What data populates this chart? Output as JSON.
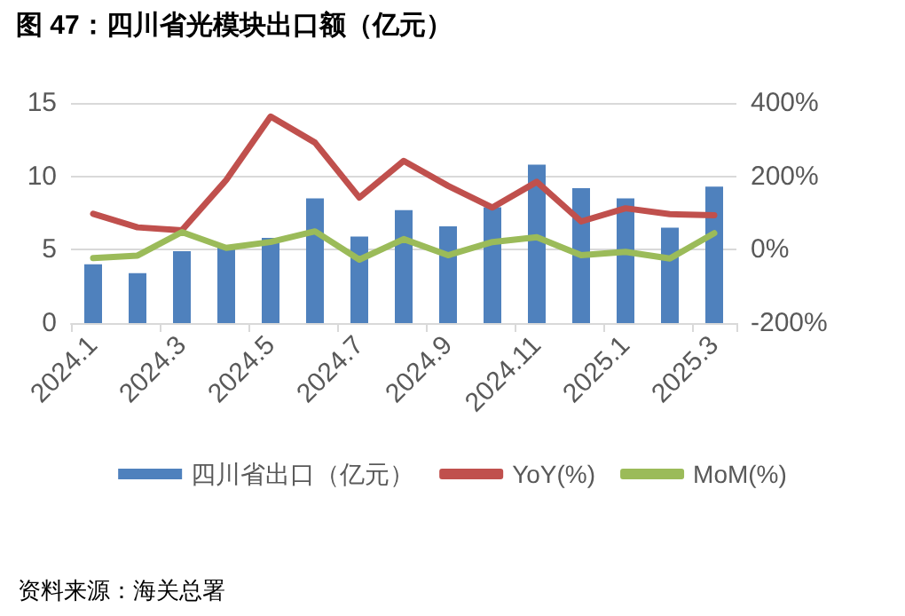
{
  "chart_data": {
    "type": "bar",
    "title": "图 47：四川省光模块出口额（亿元）",
    "categories": [
      "2024.1",
      null,
      "2024.3",
      null,
      "2024.5",
      null,
      "2024.7",
      null,
      "2024.9",
      null,
      "2024.11",
      null,
      "2025.1",
      null,
      "2025.3"
    ],
    "series": [
      {
        "name": "四川省出口（亿元）",
        "color": "#4f81bd",
        "values": [
          4.0,
          3.4,
          4.9,
          5.2,
          5.8,
          8.5,
          5.9,
          7.7,
          6.6,
          7.9,
          10.8,
          9.2,
          8.5,
          6.5,
          9.3
        ]
      },
      {
        "name": "YoY(%)",
        "type": "line",
        "axis": "y2",
        "color": "#c0504d",
        "values": [
          98,
          61,
          53,
          190,
          363,
          292,
          142,
          242,
          174,
          115,
          185,
          77,
          113,
          97,
          94
        ]
      },
      {
        "name": "MoM(%)",
        "type": "line",
        "axis": "y2",
        "color": "#9bbb59",
        "values": [
          -23,
          -16,
          48,
          5,
          21,
          50,
          -27,
          29,
          -15,
          21,
          34,
          -15,
          -6,
          -24,
          45
        ]
      }
    ],
    "ylim": [
      0,
      15
    ],
    "yticks": [
      0,
      5,
      10,
      15
    ],
    "y2lim": [
      -200,
      400
    ],
    "y2ticks": [
      {
        "value": -200,
        "label": "-200%"
      },
      {
        "value": 0,
        "label": "0%"
      },
      {
        "value": 200,
        "label": "200%"
      },
      {
        "value": 400,
        "label": "400%"
      }
    ],
    "grid": "y",
    "legend": "bottom",
    "marker": "none",
    "line_style": "solid",
    "annotations": [
      "资料来源：海关总署"
    ]
  }
}
